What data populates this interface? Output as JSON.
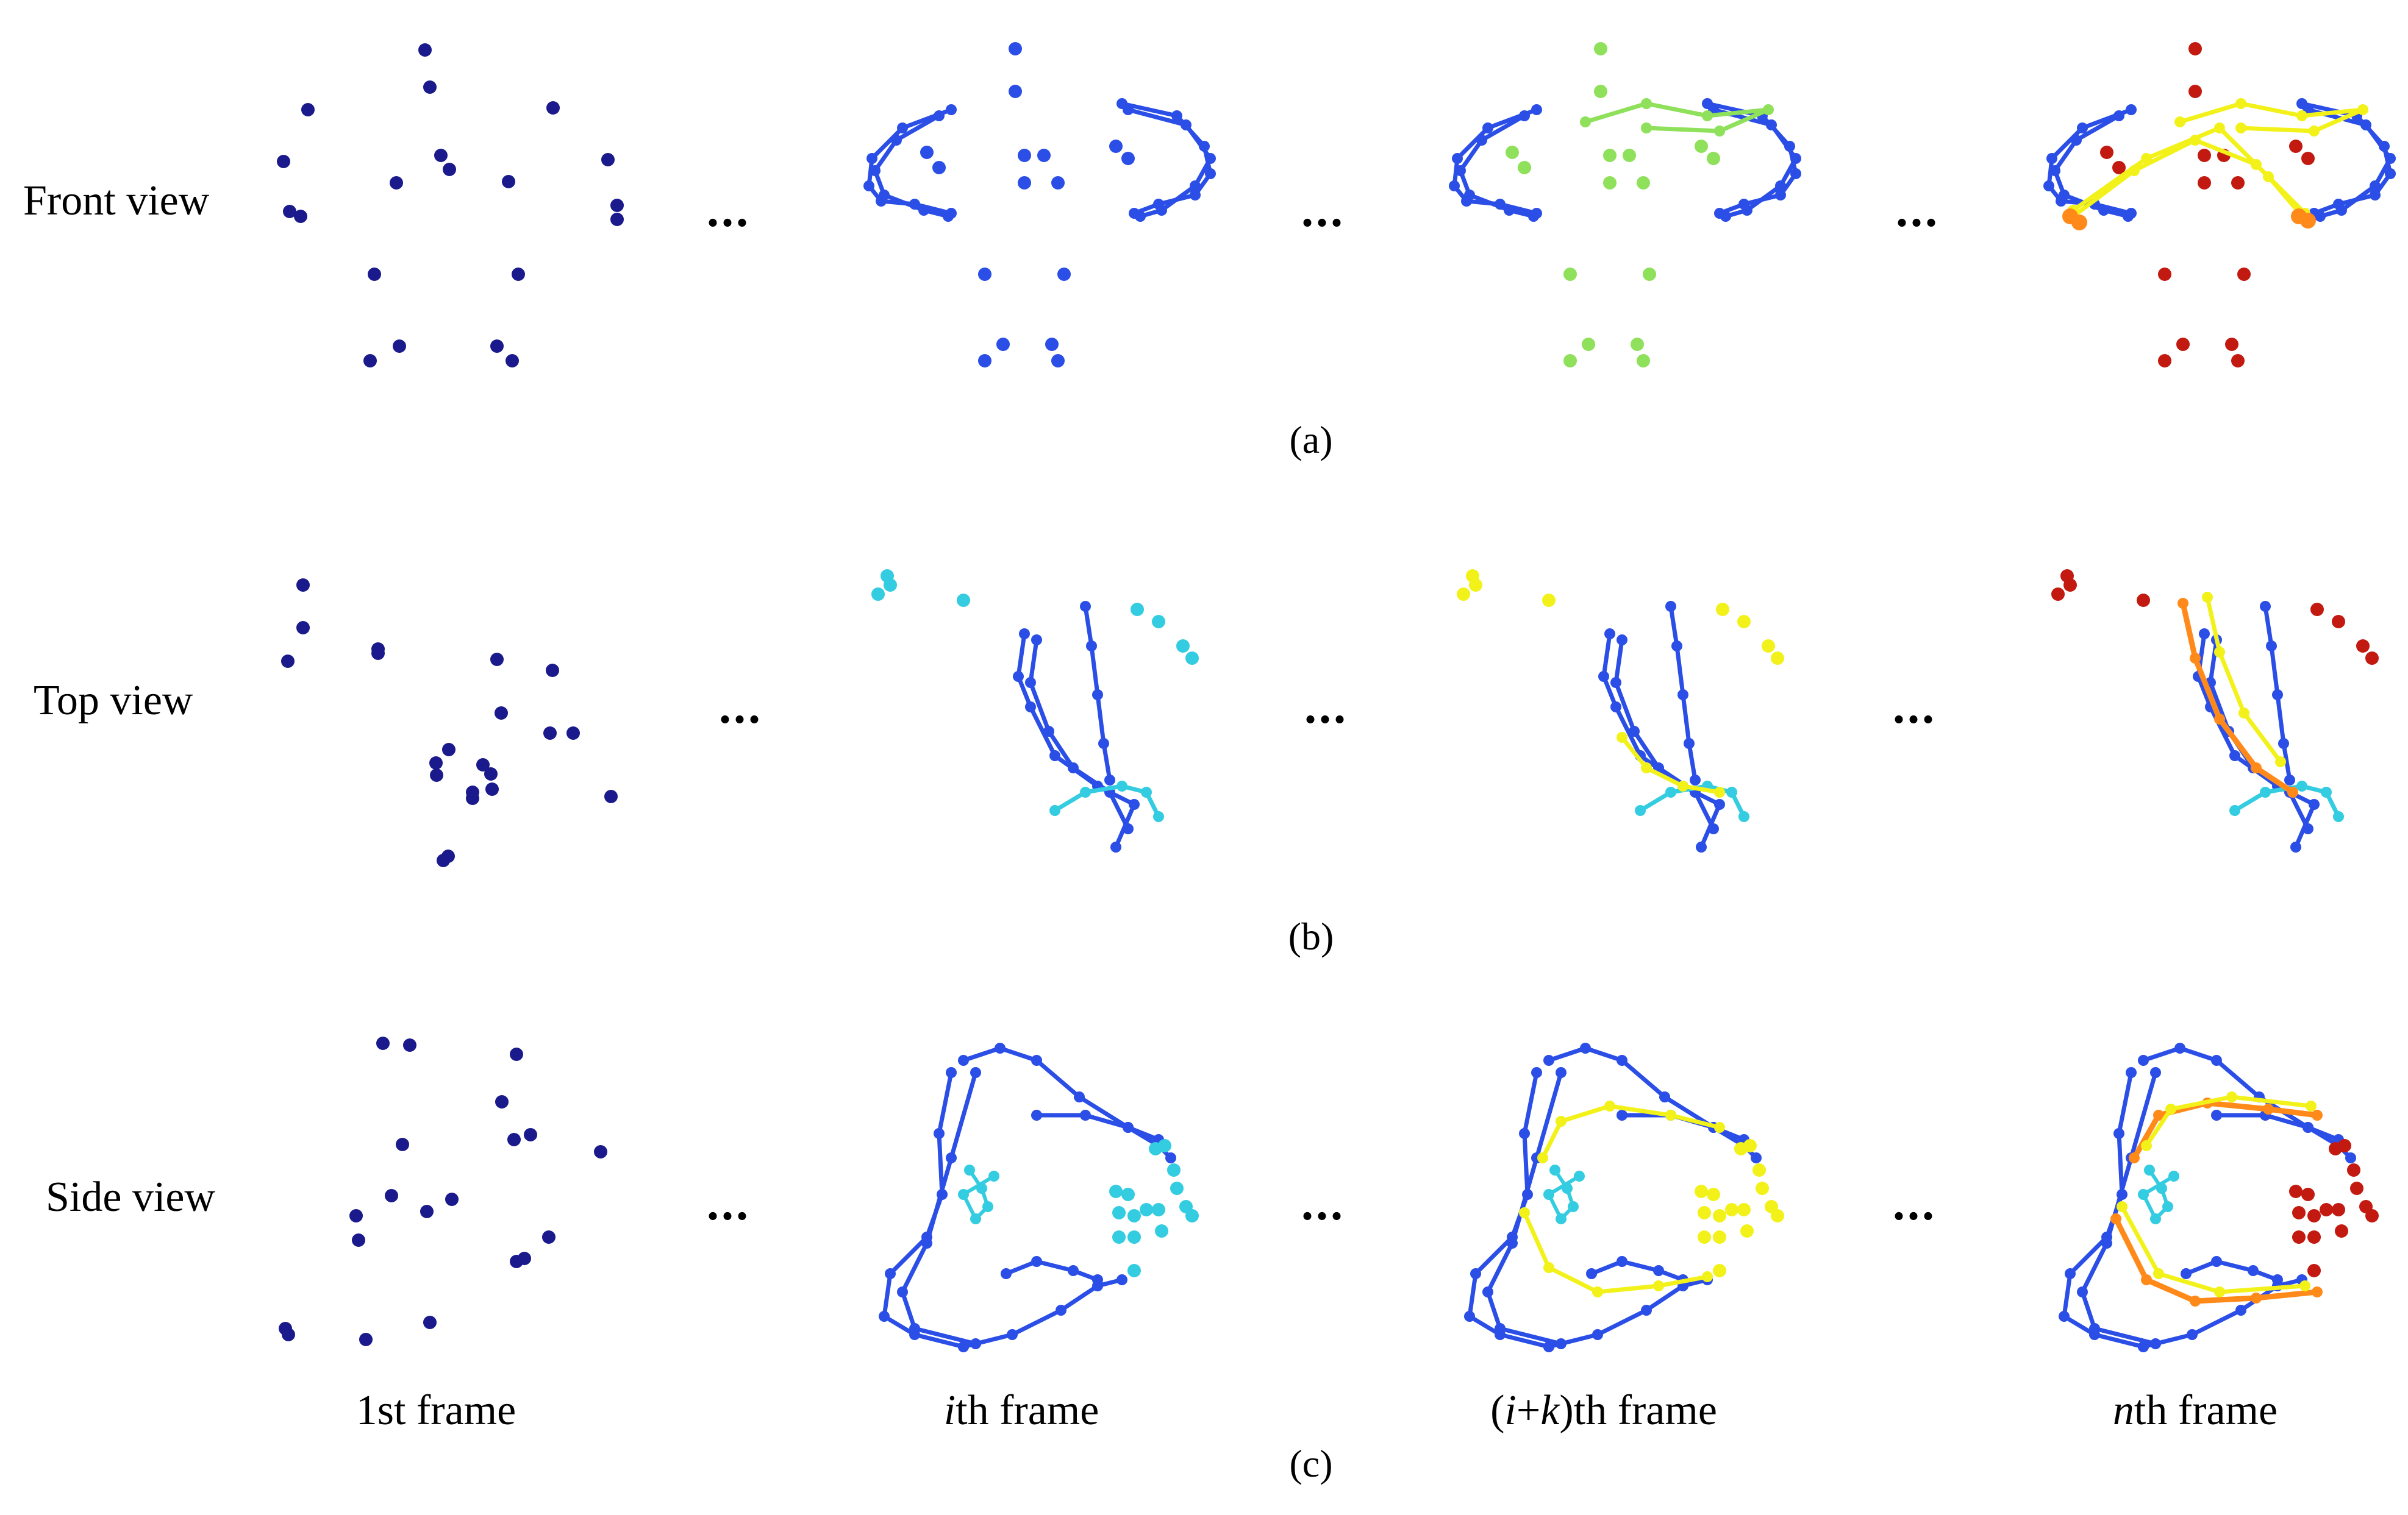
{
  "rows": [
    {
      "label": "Front view",
      "sub": "(a)"
    },
    {
      "label": "Top view",
      "sub": "(b)"
    },
    {
      "label": "Side view",
      "sub": "(c)"
    }
  ],
  "frames": [
    "1st frame",
    "ith frame",
    "(i+k)th frame",
    "nth frame"
  ],
  "frame_parts": [
    [
      {
        "t": "1st frame",
        "i": false
      }
    ],
    [
      {
        "t": "i",
        "i": true
      },
      {
        "t": "th frame",
        "i": false
      }
    ],
    [
      {
        "t": "(",
        "i": false
      },
      {
        "t": "i",
        "i": true
      },
      {
        "t": "+",
        "i": false
      },
      {
        "t": "k",
        "i": true
      },
      {
        "t": ")th frame",
        "i": false
      }
    ],
    [
      {
        "t": "n",
        "i": true
      },
      {
        "t": "th frame",
        "i": false
      }
    ]
  ],
  "ellipsis": "...",
  "colors": {
    "early": "#1a1a8c",
    "blue": "#2a4ee6",
    "cyan": "#33cce0",
    "green": "#8fe05a",
    "yellow": "#f2f21a",
    "orange": "#ff8a1a",
    "red": "#c21a10"
  }
}
